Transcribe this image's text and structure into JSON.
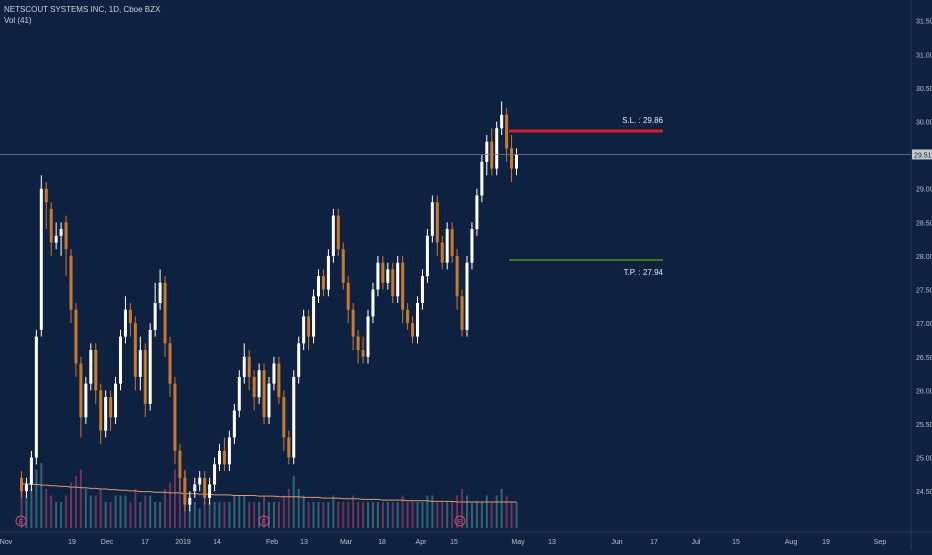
{
  "header": {
    "symbol_line": "NETSCOUT SYSTEMS INC, 1D, Cboe BZX",
    "volume_line": "Vol (41)"
  },
  "colors": {
    "background": "#0f2140",
    "up": "#ffffff",
    "down": "#c87a2c",
    "stop_loss": "#d0202a",
    "take_profit": "#3a7d1c",
    "volume_ma": "#d89a6e",
    "price_line": "#6e7e96",
    "axis_text": "#b7c0cc"
  },
  "chart_data": {
    "type": "candlestick",
    "title": "NETSCOUT SYSTEMS INC, 1D, Cboe BZX",
    "ylim": [
      24.25,
      31.6
    ],
    "y_ticks": [
      "31.50",
      "31.00",
      "30.50",
      "30.00",
      "29.50",
      "29.00",
      "28.50",
      "28.00",
      "27.50",
      "27.00",
      "26.50",
      "26.00",
      "25.50",
      "25.00",
      "24.50"
    ],
    "x_ticks": [
      "Nov",
      "19",
      "Dec",
      "17",
      "2019",
      "14",
      "Feb",
      "13",
      "Mar",
      "18",
      "Apr",
      "15",
      "May",
      "13",
      "Jun",
      "17",
      "Jul",
      "15",
      "Aug",
      "19",
      "Sep"
    ],
    "last_price": "29.51",
    "candles": [
      [
        24.7,
        24.5,
        24.8,
        24.4
      ],
      [
        24.5,
        24.6,
        24.7,
        24.4
      ],
      [
        24.6,
        25.0,
        25.1,
        24.5
      ],
      [
        25.0,
        26.8,
        26.9,
        24.9
      ],
      [
        26.9,
        29.0,
        29.2,
        26.8
      ],
      [
        29.0,
        28.8,
        29.1,
        28.4
      ],
      [
        28.7,
        28.2,
        28.8,
        28.0
      ],
      [
        28.2,
        28.3,
        28.5,
        28.1
      ],
      [
        28.3,
        28.4,
        28.5,
        28.0
      ],
      [
        28.5,
        28.1,
        28.6,
        27.7
      ],
      [
        28.0,
        27.2,
        28.1,
        27.0
      ],
      [
        27.2,
        26.4,
        27.3,
        26.2
      ],
      [
        26.4,
        25.6,
        26.5,
        25.3
      ],
      [
        25.6,
        26.1,
        26.2,
        25.5
      ],
      [
        26.1,
        26.6,
        26.7,
        26.0
      ],
      [
        26.6,
        26.0,
        26.7,
        25.8
      ],
      [
        26.0,
        25.4,
        26.1,
        25.2
      ],
      [
        25.4,
        25.9,
        26.0,
        25.3
      ],
      [
        25.9,
        25.6,
        26.0,
        25.4
      ],
      [
        25.6,
        26.1,
        26.2,
        25.5
      ],
      [
        26.1,
        26.8,
        26.9,
        26.0
      ],
      [
        26.8,
        27.2,
        27.4,
        26.7
      ],
      [
        27.2,
        27.0,
        27.3,
        26.8
      ],
      [
        27.0,
        26.2,
        27.1,
        26.0
      ],
      [
        26.2,
        26.6,
        26.8,
        26.0
      ],
      [
        26.6,
        25.8,
        26.7,
        25.6
      ],
      [
        25.8,
        26.9,
        27.0,
        25.7
      ],
      [
        26.9,
        27.3,
        27.6,
        26.8
      ],
      [
        27.3,
        27.6,
        27.8,
        27.2
      ],
      [
        27.6,
        26.7,
        27.7,
        26.5
      ],
      [
        26.7,
        26.1,
        26.8,
        25.9
      ],
      [
        26.1,
        25.1,
        26.2,
        24.9
      ],
      [
        25.1,
        24.7,
        25.2,
        24.5
      ],
      [
        24.7,
        24.3,
        24.8,
        24.2
      ],
      [
        24.3,
        24.4,
        24.5,
        24.2
      ],
      [
        24.5,
        24.6,
        24.7,
        24.4
      ],
      [
        24.6,
        24.7,
        24.8,
        24.5
      ],
      [
        24.7,
        24.4,
        24.8,
        24.3
      ],
      [
        24.4,
        24.6,
        24.7,
        24.3
      ],
      [
        24.6,
        24.9,
        25.0,
        24.5
      ],
      [
        24.9,
        25.1,
        25.2,
        24.8
      ],
      [
        25.1,
        24.9,
        25.3,
        24.8
      ],
      [
        24.9,
        25.3,
        25.4,
        24.8
      ],
      [
        25.3,
        25.7,
        25.8,
        25.2
      ],
      [
        25.7,
        26.2,
        26.3,
        25.6
      ],
      [
        26.2,
        26.5,
        26.7,
        26.1
      ],
      [
        26.5,
        26.2,
        26.6,
        26.0
      ],
      [
        26.2,
        25.9,
        26.3,
        25.7
      ],
      [
        25.9,
        26.3,
        26.4,
        25.8
      ],
      [
        26.3,
        25.6,
        26.4,
        25.5
      ],
      [
        25.6,
        26.1,
        26.2,
        25.5
      ],
      [
        26.1,
        26.4,
        26.5,
        26.0
      ],
      [
        26.4,
        25.9,
        26.5,
        25.8
      ],
      [
        25.9,
        25.3,
        26.0,
        25.1
      ],
      [
        25.3,
        25.0,
        25.4,
        24.9
      ],
      [
        25.0,
        26.2,
        26.3,
        24.9
      ],
      [
        26.2,
        26.7,
        26.8,
        26.1
      ],
      [
        26.7,
        27.1,
        27.2,
        26.6
      ],
      [
        27.1,
        26.8,
        27.2,
        26.6
      ],
      [
        26.8,
        27.4,
        27.5,
        26.7
      ],
      [
        27.4,
        27.7,
        27.8,
        27.3
      ],
      [
        27.7,
        27.5,
        27.8,
        27.4
      ],
      [
        27.5,
        28.0,
        28.1,
        27.4
      ],
      [
        28.0,
        28.6,
        28.7,
        27.9
      ],
      [
        28.6,
        28.1,
        28.7,
        28.0
      ],
      [
        28.1,
        27.6,
        28.2,
        27.5
      ],
      [
        27.6,
        27.2,
        27.7,
        27.0
      ],
      [
        27.2,
        26.8,
        27.3,
        26.6
      ],
      [
        26.8,
        26.6,
        26.9,
        26.4
      ],
      [
        26.6,
        26.5,
        26.8,
        26.4
      ],
      [
        26.5,
        27.1,
        27.2,
        26.4
      ],
      [
        27.1,
        27.5,
        27.6,
        27.0
      ],
      [
        27.5,
        27.9,
        28.0,
        27.4
      ],
      [
        27.9,
        27.6,
        28.0,
        27.5
      ],
      [
        27.6,
        27.8,
        27.9,
        27.5
      ],
      [
        27.8,
        27.4,
        27.9,
        27.3
      ],
      [
        27.4,
        27.9,
        28.0,
        27.3
      ],
      [
        27.9,
        27.2,
        28.0,
        27.0
      ],
      [
        27.2,
        27.0,
        27.3,
        26.9
      ],
      [
        27.0,
        26.8,
        27.1,
        26.7
      ],
      [
        26.8,
        27.3,
        27.4,
        26.7
      ],
      [
        27.3,
        27.7,
        27.8,
        27.2
      ],
      [
        27.7,
        28.3,
        28.4,
        27.6
      ],
      [
        28.3,
        28.8,
        28.9,
        28.2
      ],
      [
        28.8,
        28.2,
        28.9,
        28.0
      ],
      [
        28.2,
        27.9,
        28.3,
        27.8
      ],
      [
        27.9,
        28.4,
        28.5,
        27.8
      ],
      [
        28.4,
        28.0,
        28.5,
        27.9
      ],
      [
        28.0,
        27.4,
        28.1,
        27.2
      ],
      [
        27.4,
        26.9,
        27.5,
        26.8
      ],
      [
        26.9,
        27.9,
        28.0,
        26.8
      ],
      [
        27.9,
        28.4,
        28.5,
        27.8
      ],
      [
        28.4,
        28.9,
        29.0,
        28.3
      ],
      [
        28.9,
        29.4,
        29.5,
        28.8
      ],
      [
        29.4,
        29.7,
        29.8,
        29.2
      ],
      [
        29.7,
        29.3,
        29.9,
        29.2
      ],
      [
        29.3,
        29.9,
        30.0,
        29.2
      ],
      [
        29.9,
        30.1,
        30.3,
        29.8
      ],
      [
        30.1,
        29.6,
        30.2,
        29.4
      ],
      [
        29.6,
        29.3,
        29.8,
        29.1
      ],
      [
        29.3,
        29.51,
        29.6,
        29.2
      ]
    ],
    "volume": [
      0.7,
      0.5,
      0.6,
      0.9,
      1.0,
      0.6,
      0.5,
      0.4,
      0.4,
      0.5,
      0.7,
      0.8,
      0.9,
      0.6,
      0.5,
      0.5,
      0.6,
      0.4,
      0.4,
      0.5,
      0.5,
      0.5,
      0.4,
      0.6,
      0.4,
      0.5,
      0.5,
      0.4,
      0.4,
      0.6,
      0.7,
      0.9,
      0.8,
      0.9,
      0.5,
      0.4,
      0.3,
      0.4,
      0.4,
      0.4,
      0.4,
      0.4,
      0.4,
      0.5,
      0.5,
      0.5,
      0.4,
      0.4,
      0.4,
      0.5,
      0.4,
      0.4,
      0.4,
      0.5,
      0.6,
      0.8,
      0.6,
      0.5,
      0.4,
      0.4,
      0.4,
      0.4,
      0.4,
      0.5,
      0.4,
      0.4,
      0.4,
      0.5,
      0.4,
      0.4,
      0.4,
      0.4,
      0.4,
      0.4,
      0.4,
      0.4,
      0.4,
      0.5,
      0.4,
      0.4,
      0.4,
      0.4,
      0.5,
      0.5,
      0.4,
      0.4,
      0.4,
      0.4,
      0.5,
      0.6,
      0.5,
      0.4,
      0.4,
      0.4,
      0.5,
      0.4,
      0.5,
      0.6,
      0.5,
      0.4,
      0.4
    ],
    "volume_ma": [
      0.68,
      0.68,
      0.67,
      0.67,
      0.66,
      0.66,
      0.65,
      0.65,
      0.64,
      0.64,
      0.63,
      0.63,
      0.62,
      0.62,
      0.61,
      0.61,
      0.6,
      0.6,
      0.59,
      0.59,
      0.58,
      0.58,
      0.57,
      0.57,
      0.56,
      0.56,
      0.56,
      0.55,
      0.55,
      0.55,
      0.54,
      0.54,
      0.54,
      0.53,
      0.53,
      0.53,
      0.52,
      0.52,
      0.52,
      0.51,
      0.51,
      0.51,
      0.51,
      0.5,
      0.5,
      0.5,
      0.5,
      0.5,
      0.49,
      0.49,
      0.49,
      0.49,
      0.48,
      0.48,
      0.48,
      0.48,
      0.48,
      0.47,
      0.47,
      0.47,
      0.47,
      0.46,
      0.46,
      0.46,
      0.46,
      0.45,
      0.45,
      0.45,
      0.45,
      0.44,
      0.44,
      0.44,
      0.44,
      0.43,
      0.43,
      0.43,
      0.43,
      0.43,
      0.42,
      0.42,
      0.42,
      0.42,
      0.42,
      0.41,
      0.41,
      0.41,
      0.41,
      0.41,
      0.4,
      0.4,
      0.4,
      0.4,
      0.4,
      0.4,
      0.4,
      0.4,
      0.4,
      0.4,
      0.4,
      0.4,
      0.4
    ],
    "earnings_markers": [
      "E",
      "E",
      "E"
    ],
    "levels": [
      {
        "label": "S.L. : 29.86",
        "value": 29.86,
        "color": "#d0202a"
      },
      {
        "label": "T.P. : 27.94",
        "value": 27.94,
        "color": "#3a7d1c"
      }
    ]
  }
}
